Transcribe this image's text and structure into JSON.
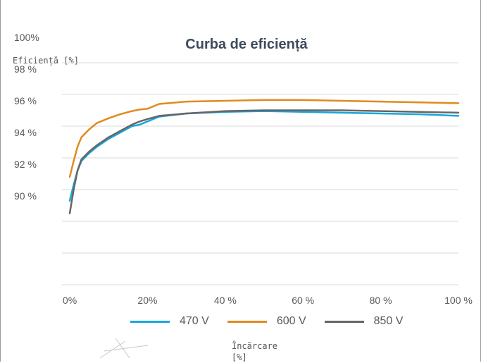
{
  "chart_data": {
    "type": "line",
    "title": "Curba de eficiență",
    "ylabel": "Eficiență [%]",
    "xlabel_line1": "Încărcare",
    "xlabel_line2": "[%]",
    "xlim": [
      -2,
      100
    ],
    "ylim": [
      86,
      100
    ],
    "grid": true,
    "legend_position": "bottom",
    "x_ticks": [
      {
        "value": 0,
        "label": "0%"
      },
      {
        "value": 20,
        "label": "20%"
      },
      {
        "value": 40,
        "label": "40 %"
      },
      {
        "value": 60,
        "label": "60 %"
      },
      {
        "value": 80,
        "label": "80 %"
      },
      {
        "value": 100,
        "label": "100 %"
      }
    ],
    "y_ticks": [
      {
        "value": 100,
        "label": "100%"
      },
      {
        "value": 98,
        "label": "98 %"
      },
      {
        "value": 96,
        "label": "96 %"
      },
      {
        "value": 94,
        "label": "94 %"
      },
      {
        "value": 92,
        "label": "92 %"
      },
      {
        "value": 90,
        "label": "90 %"
      }
    ],
    "series": [
      {
        "name": "470 V",
        "color": "#1aa7dd",
        "points": [
          [
            0,
            91.3
          ],
          [
            1,
            92.3
          ],
          [
            2,
            93.2
          ],
          [
            3,
            93.8
          ],
          [
            5,
            94.3
          ],
          [
            7,
            94.7
          ],
          [
            10,
            95.2
          ],
          [
            13,
            95.6
          ],
          [
            16,
            96.0
          ],
          [
            18,
            96.1
          ],
          [
            20,
            96.3
          ],
          [
            23,
            96.6
          ],
          [
            30,
            96.8
          ],
          [
            40,
            96.9
          ],
          [
            50,
            96.95
          ],
          [
            60,
            96.9
          ],
          [
            70,
            96.85
          ],
          [
            80,
            96.8
          ],
          [
            90,
            96.75
          ],
          [
            100,
            96.65
          ]
        ]
      },
      {
        "name": "600 V",
        "color": "#e08a1e",
        "points": [
          [
            0,
            92.8
          ],
          [
            1,
            93.8
          ],
          [
            2,
            94.7
          ],
          [
            3,
            95.3
          ],
          [
            5,
            95.8
          ],
          [
            7,
            96.2
          ],
          [
            10,
            96.5
          ],
          [
            13,
            96.75
          ],
          [
            16,
            96.95
          ],
          [
            18,
            97.05
          ],
          [
            20,
            97.1
          ],
          [
            23,
            97.4
          ],
          [
            30,
            97.55
          ],
          [
            40,
            97.6
          ],
          [
            50,
            97.65
          ],
          [
            60,
            97.65
          ],
          [
            70,
            97.6
          ],
          [
            80,
            97.55
          ],
          [
            90,
            97.5
          ],
          [
            100,
            97.45
          ]
        ]
      },
      {
        "name": "850 V",
        "color": "#666666",
        "points": [
          [
            0,
            90.5
          ],
          [
            1,
            92.0
          ],
          [
            2,
            93.2
          ],
          [
            3,
            93.9
          ],
          [
            5,
            94.4
          ],
          [
            7,
            94.8
          ],
          [
            10,
            95.3
          ],
          [
            13,
            95.7
          ],
          [
            16,
            96.1
          ],
          [
            18,
            96.3
          ],
          [
            20,
            96.45
          ],
          [
            23,
            96.65
          ],
          [
            30,
            96.8
          ],
          [
            40,
            96.95
          ],
          [
            50,
            97.0
          ],
          [
            60,
            97.0
          ],
          [
            70,
            97.0
          ],
          [
            80,
            96.95
          ],
          [
            90,
            96.9
          ],
          [
            100,
            96.85
          ]
        ]
      }
    ]
  }
}
